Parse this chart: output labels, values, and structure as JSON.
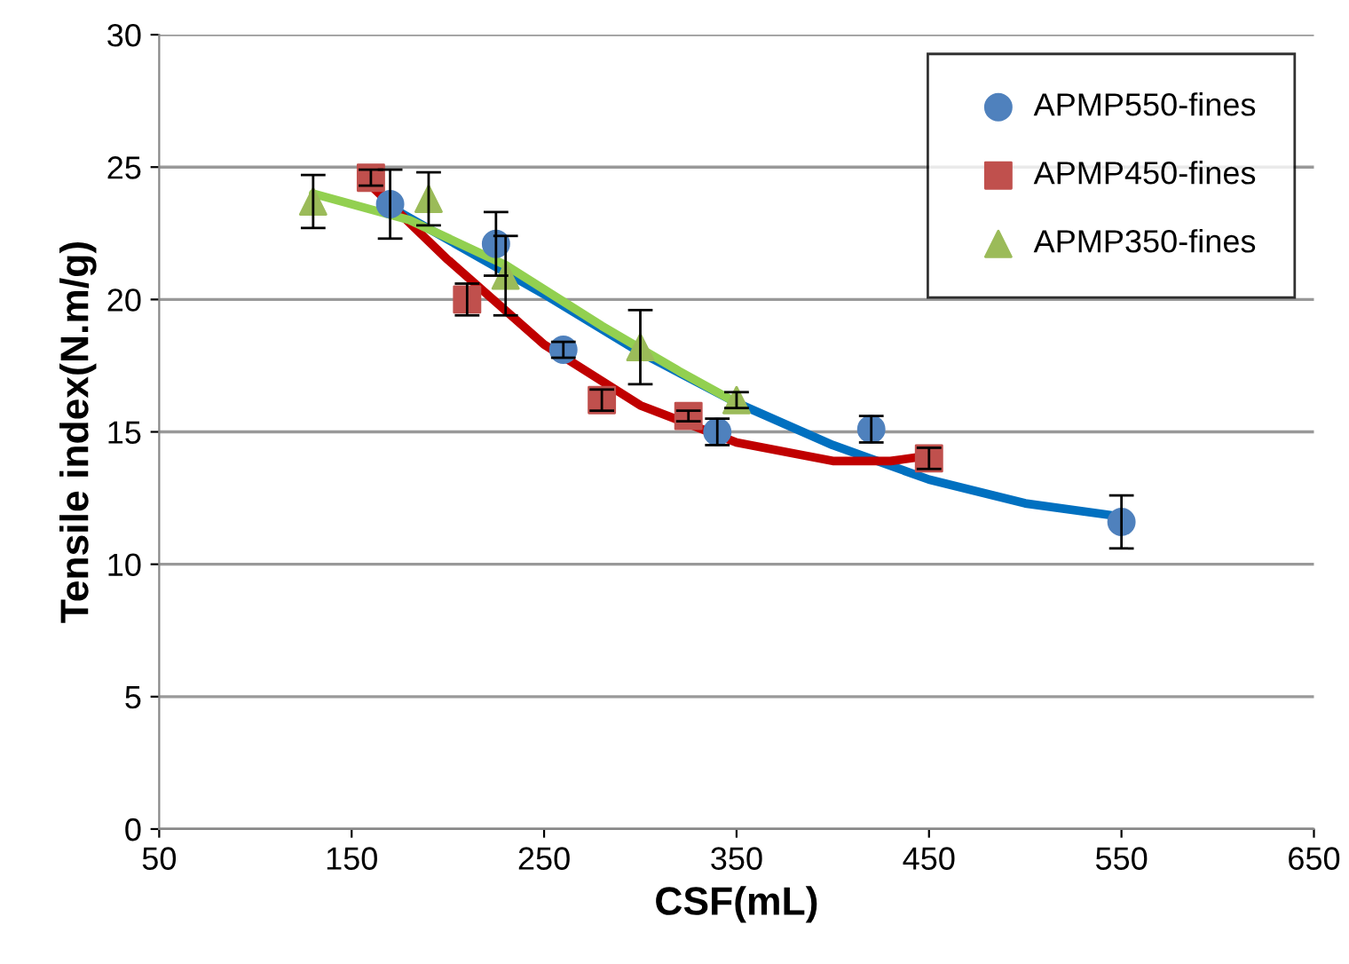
{
  "chart_data": {
    "type": "scatter",
    "xlabel": "CSF(mL)",
    "ylabel": "Tensile index(N.m/g)",
    "xlim": [
      50,
      650
    ],
    "xticks": [
      50,
      150,
      250,
      350,
      450,
      550,
      650
    ],
    "ylim": [
      0,
      30
    ],
    "yticks": [
      0,
      5,
      10,
      15,
      20,
      25,
      30
    ],
    "grid": "y",
    "legend": "top right",
    "series": [
      {
        "name": "APMP550-fines",
        "color": "#4f81bd",
        "marker": "circle",
        "x": [
          170,
          225,
          260,
          340,
          420,
          550
        ],
        "values": [
          23.6,
          22.1,
          18.1,
          15.0,
          15.1,
          11.6
        ],
        "errors": [
          1.3,
          1.2,
          0.3,
          0.5,
          0.5,
          1.0
        ]
      },
      {
        "name": "APMP450-fines",
        "color": "#c0504d",
        "marker": "square",
        "x": [
          160,
          210,
          280,
          325,
          450
        ],
        "values": [
          24.6,
          20.0,
          16.2,
          15.6,
          14.0
        ],
        "errors": [
          0.3,
          0.6,
          0.4,
          0.2,
          0.4
        ]
      },
      {
        "name": "APMP350-fines",
        "color": "#9bbb59",
        "marker": "triangle",
        "x": [
          130,
          190,
          230,
          300,
          350
        ],
        "values": [
          23.7,
          23.8,
          20.9,
          18.2,
          16.2
        ],
        "errors": [
          1.0,
          1.0,
          1.5,
          1.4,
          0.3
        ]
      },
      {
        "type": "line",
        "color": "#0070c0",
        "x": [
          170,
          250,
          300,
          350,
          400,
          450,
          500,
          550
        ],
        "values": [
          23.5,
          20.2,
          18.0,
          16.1,
          14.5,
          13.2,
          12.3,
          11.8
        ]
      },
      {
        "type": "line",
        "color": "#c00000",
        "x": [
          160,
          200,
          250,
          300,
          350,
          400,
          430,
          450
        ],
        "values": [
          24.3,
          21.5,
          18.3,
          16.0,
          14.6,
          13.9,
          13.9,
          14.1
        ]
      },
      {
        "type": "line",
        "color": "#92d050",
        "x": [
          130,
          180,
          230,
          280,
          320,
          350
        ],
        "values": [
          24.0,
          23.0,
          21.3,
          19.0,
          17.3,
          16.1
        ]
      }
    ]
  }
}
